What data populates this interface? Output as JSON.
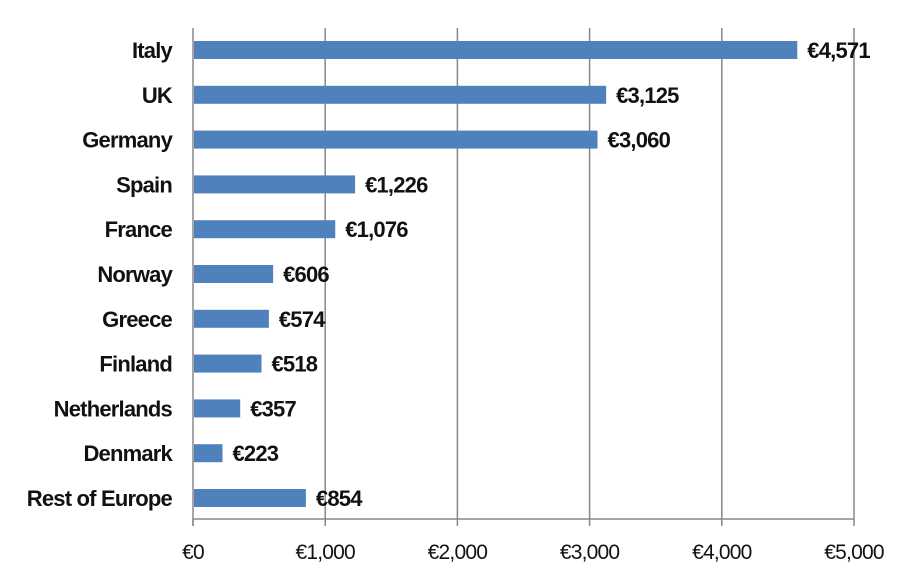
{
  "chart_data": {
    "type": "bar",
    "orientation": "horizontal",
    "categories": [
      "Italy",
      "UK",
      "Germany",
      "Spain",
      "France",
      "Norway",
      "Greece",
      "Finland",
      "Netherlands",
      "Denmark",
      "Rest of Europe"
    ],
    "values": [
      4571,
      3125,
      3060,
      1226,
      1076,
      606,
      574,
      518,
      357,
      223,
      854
    ],
    "value_labels": [
      "€4,571",
      "€3,125",
      "€3,060",
      "€1,226",
      "€1,076",
      "€606",
      "€574",
      "€518",
      "€357",
      "€223",
      "€854"
    ],
    "x_ticks": [
      0,
      1000,
      2000,
      3000,
      4000,
      5000
    ],
    "x_tick_labels": [
      "€0",
      "€1,000",
      "€2,000",
      "€3,000",
      "€4,000",
      "€5,000"
    ],
    "xlim": [
      0,
      5000
    ],
    "title": "",
    "xlabel": "",
    "ylabel": "",
    "grid": "vertical",
    "legend": "none",
    "bar_color": "#4f81bd",
    "grid_color": "#888888"
  }
}
